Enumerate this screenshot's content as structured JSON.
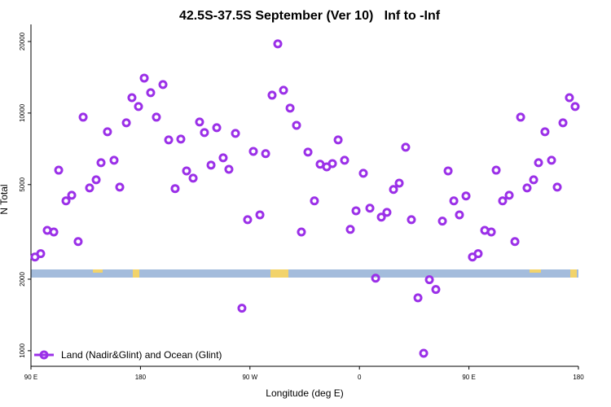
{
  "chart_data": {
    "type": "scatter",
    "title": "42.5S-37.5S September (Ver 10)   Inf to -Inf",
    "xlabel": "Longitude (deg E)",
    "ylabel": "N Total",
    "log_y": true,
    "legend": "bottom-left",
    "xlim": [
      90,
      540
    ],
    "xticks": [
      {
        "value": 90,
        "label": "90 E"
      },
      180,
      {
        "value": 270,
        "label": "90 W"
      },
      {
        "value": 360,
        "label": "0"
      },
      {
        "value": 450,
        "label": "90 E"
      },
      {
        "value": 540,
        "label": "180"
      }
    ],
    "ylim": [
      860,
      23600
    ],
    "yticks": [
      1000,
      2000,
      5000,
      10000,
      20000
    ],
    "series": [
      {
        "name": "Land (Nadir&Glint) and Ocean (Glint)",
        "color": "#9b30e8",
        "x": [
          93.3,
          98,
          103.4,
          108.8,
          112.8,
          118.8,
          123.5,
          128.8,
          132.9,
          138.2,
          143.6,
          147.6,
          152.9,
          158.3,
          163,
          168.4,
          173,
          178.4,
          183.1,
          188.4,
          193.1,
          198.5,
          203.2,
          208.5,
          213.2,
          217.9,
          223.3,
          228.6,
          232.6,
          238,
          242.7,
          248,
          252.7,
          258.1,
          263.4,
          268.1,
          272.8,
          278.2,
          282.9,
          288.2,
          292.9,
          297.6,
          303,
          308.3,
          312.3,
          317.7,
          323,
          327.7,
          333.1,
          337.8,
          342.5,
          347.8,
          352.5,
          357.2,
          363.2,
          368.6,
          373.3,
          378,
          382.6,
          388,
          392.7,
          398,
          402.7,
          408.1,
          412.8,
          417.5,
          422.8,
          428.2,
          432.9,
          437.6,
          442.2,
          447.6,
          452.9,
          457.6,
          463,
          468.4,
          472.4,
          477.7,
          483.1,
          487.8,
          492.5,
          497.8,
          503.2,
          507.2,
          512.5,
          517.9,
          522.6,
          527.3,
          532.6,
          537.3
        ],
        "values": [
          2480,
          2560,
          3210,
          3160,
          5750,
          4270,
          4510,
          2880,
          9610,
          4840,
          5240,
          6180,
          8340,
          6330,
          4880,
          9100,
          11610,
          10650,
          14030,
          12180,
          9610,
          13180,
          7710,
          4810,
          7770,
          5710,
          5320,
          9170,
          8280,
          6040,
          8680,
          6480,
          5800,
          8210,
          1510,
          3560,
          6900,
          3730,
          6750,
          11890,
          19550,
          12470,
          10490,
          8880,
          3160,
          6850,
          4270,
          6090,
          5940,
          6130,
          7710,
          6330,
          3240,
          3880,
          5580,
          3980,
          2020,
          3650,
          3820,
          4770,
          5070,
          7180,
          3560,
          1670,
          976,
          1990,
          1810,
          3510,
          5710,
          4270,
          3730,
          4480,
          2480,
          2560,
          3210,
          3160,
          5750,
          4270,
          4510,
          2880,
          9610,
          4840,
          5240,
          6180,
          8340,
          6330,
          4880,
          9100,
          11610,
          10650
        ]
      }
    ]
  }
}
